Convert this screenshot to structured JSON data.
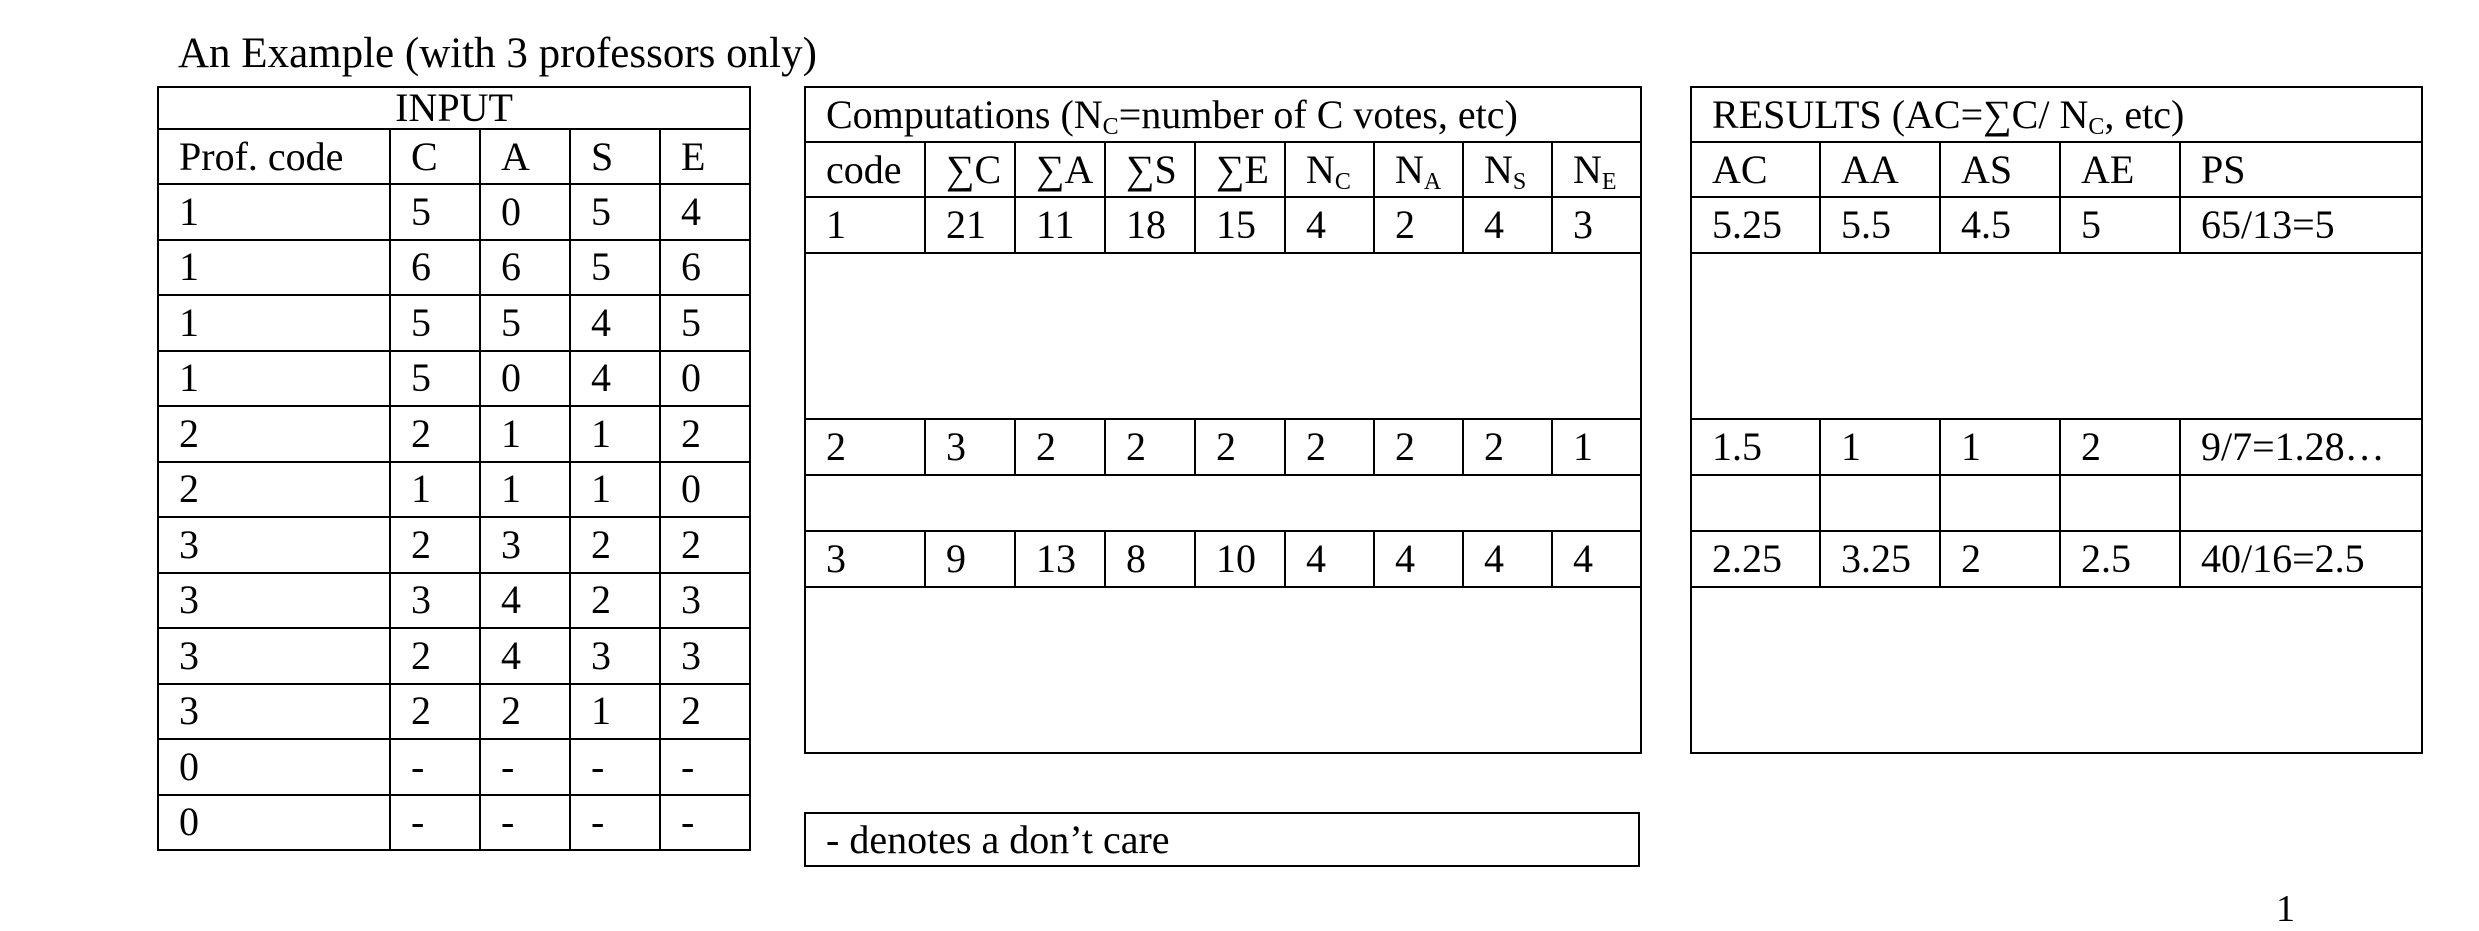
{
  "title": "An Example (with 3 professors only)",
  "page_number": "1",
  "note": "- denotes a don’t care",
  "input": {
    "title": "INPUT",
    "headers": [
      "Prof. code",
      "C",
      "A",
      "S",
      "E"
    ],
    "rows": [
      [
        "1",
        "5",
        "0",
        "5",
        "4"
      ],
      [
        "1",
        "6",
        "6",
        "5",
        "6"
      ],
      [
        "1",
        "5",
        "5",
        "4",
        "5"
      ],
      [
        "1",
        "5",
        "0",
        "4",
        "0"
      ],
      [
        "2",
        "2",
        "1",
        "1",
        "2"
      ],
      [
        "2",
        "1",
        "1",
        "1",
        "0"
      ],
      [
        "3",
        "2",
        "3",
        "2",
        "2"
      ],
      [
        "3",
        "3",
        "4",
        "2",
        "3"
      ],
      [
        "3",
        "2",
        "4",
        "3",
        "3"
      ],
      [
        "3",
        "2",
        "2",
        "1",
        "2"
      ],
      [
        "0",
        "-",
        "-",
        "-",
        "-"
      ],
      [
        "0",
        "-",
        "-",
        "-",
        "-"
      ]
    ]
  },
  "computations": {
    "title_prefix": "Computations (N",
    "title_sub": "C",
    "title_suffix": "=number of C votes, etc)",
    "headers": [
      {
        "main": "code",
        "sub": ""
      },
      {
        "main": "∑C",
        "sub": ""
      },
      {
        "main": "∑A",
        "sub": ""
      },
      {
        "main": "∑S",
        "sub": ""
      },
      {
        "main": "∑E",
        "sub": ""
      },
      {
        "main": "N",
        "sub": "C"
      },
      {
        "main": "N",
        "sub": "A"
      },
      {
        "main": "N",
        "sub": "S"
      },
      {
        "main": "N",
        "sub": "E"
      }
    ],
    "rows": [
      [
        "1",
        "21",
        "11",
        "18",
        "15",
        "4",
        "2",
        "4",
        "3"
      ],
      [
        "2",
        "3",
        "2",
        "2",
        "2",
        "2",
        "2",
        "2",
        "1"
      ],
      [
        "3",
        "9",
        "13",
        "8",
        "10",
        "4",
        "4",
        "4",
        "4"
      ]
    ]
  },
  "results": {
    "title_prefix": "RESULTS (AC=∑C/ N",
    "title_sub": "C",
    "title_suffix": ", etc)",
    "headers": [
      "AC",
      "AA",
      "AS",
      "AE",
      "PS"
    ],
    "rows": [
      [
        "5.25",
        "5.5",
        "4.5",
        "5",
        "65/13=5"
      ],
      [
        "1.5",
        "1",
        "1",
        "2",
        "9/7=1.28…"
      ],
      [
        "2.25",
        "3.25",
        "2",
        "2.5",
        "40/16=2.5"
      ]
    ]
  }
}
